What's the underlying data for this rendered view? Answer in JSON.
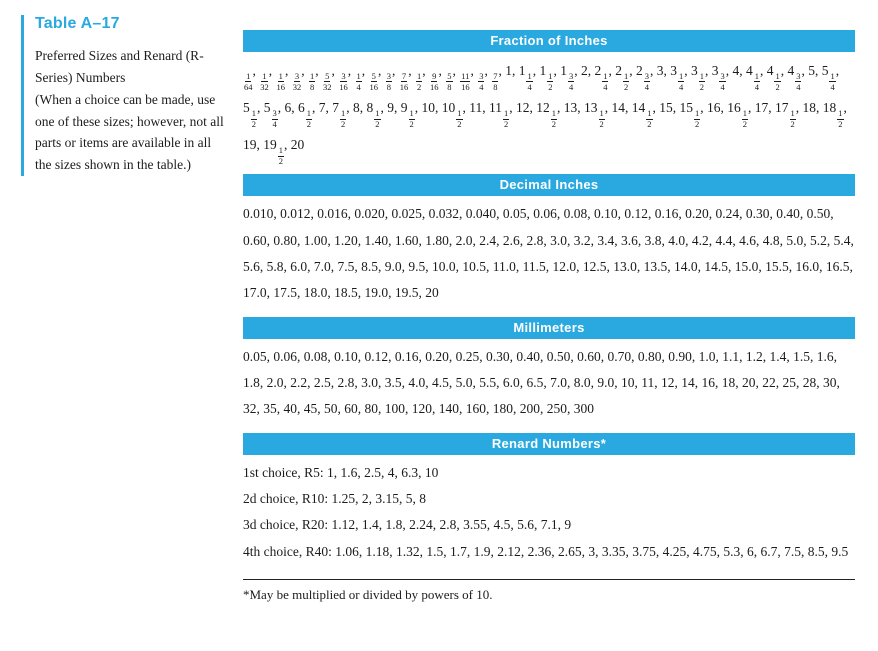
{
  "colors": {
    "accent": "#29a9e0"
  },
  "caption": {
    "title": "Table A–17",
    "part1": "Preferred Sizes and Renard (R-Series) Numbers",
    "part2": "(When a choice can be made, use one of these sizes; however, not all parts or items are available in all the sizes shown in the table.)"
  },
  "sections": {
    "fractions": {
      "title": "Fraction of Inches",
      "items": [
        "1/64",
        "1/32",
        "1/16",
        "3/32",
        "1/8",
        "5/32",
        "3/16",
        "1/4",
        "5/16",
        "3/8",
        "7/16",
        "1/2",
        "9/16",
        "5/8",
        "11/16",
        "3/4",
        "7/8",
        "1",
        "1 1/4",
        "1 1/2",
        "1 3/4",
        "2",
        "2 1/4",
        "2 1/2",
        "2 3/4",
        "3",
        "3 1/4",
        "3 1/2",
        "3 3/4",
        "4",
        "4 1/4",
        "4 1/2",
        "4 3/4",
        "5",
        "5 1/4",
        "5 1/2",
        "5 3/4",
        "6",
        "6 1/2",
        "7",
        "7 1/2",
        "8",
        "8 1/2",
        "9",
        "9 1/2",
        "10",
        "10 1/2",
        "11",
        "11 1/2",
        "12",
        "12 1/2",
        "13",
        "13 1/2",
        "14",
        "14 1/2",
        "15",
        "15 1/2",
        "16",
        "16 1/2",
        "17",
        "17 1/2",
        "18",
        "18 1/2",
        "19",
        "19 1/2",
        "20"
      ]
    },
    "decimal": {
      "title": "Decimal Inches",
      "values": "0.010, 0.012, 0.016, 0.020, 0.025, 0.032, 0.040, 0.05, 0.06, 0.08, 0.10, 0.12, 0.16, 0.20, 0.24, 0.30, 0.40, 0.50, 0.60, 0.80, 1.00, 1.20, 1.40, 1.60, 1.80, 2.0, 2.4, 2.6, 2.8, 3.0, 3.2, 3.4, 3.6, 3.8, 4.0, 4.2, 4.4, 4.6, 4.8, 5.0, 5.2, 5.4, 5.6, 5.8, 6.0, 7.0, 7.5, 8.5, 9.0, 9.5, 10.0, 10.5, 11.0, 11.5, 12.0, 12.5, 13.0, 13.5, 14.0, 14.5, 15.0, 15.5, 16.0, 16.5, 17.0, 17.5, 18.0, 18.5, 19.0, 19.5, 20"
    },
    "millimeters": {
      "title": "Millimeters",
      "values": "0.05, 0.06, 0.08, 0.10, 0.12, 0.16, 0.20, 0.25, 0.30, 0.40, 0.50, 0.60, 0.70, 0.80, 0.90, 1.0, 1.1, 1.2, 1.4, 1.5, 1.6, 1.8, 2.0, 2.2, 2.5, 2.8, 3.0, 3.5, 4.0, 4.5, 5.0, 5.5, 6.0, 6.5, 7.0, 8.0, 9.0, 10, 11, 12, 14, 16, 18, 20, 22, 25, 28, 30, 32, 35, 40, 45, 50, 60, 80, 100, 120, 140, 160, 180, 200, 250, 300"
    },
    "renard": {
      "title": "Renard Numbers*",
      "lines": [
        "1st choice, R5: 1, 1.6, 2.5, 4, 6.3, 10",
        "2d choice, R10: 1.25, 2, 3.15, 5, 8",
        "3d choice, R20: 1.12, 1.4, 1.8, 2.24, 2.8, 3.55, 4.5, 5.6, 7.1, 9",
        "4th choice, R40: 1.06, 1.18, 1.32, 1.5, 1.7, 1.9, 2.12, 2.36, 2.65, 3, 3.35, 3.75, 4.25, 4.75, 5.3, 6, 6.7, 7.5, 8.5, 9.5"
      ]
    }
  },
  "footnote": "*May be multiplied or divided by powers of 10."
}
